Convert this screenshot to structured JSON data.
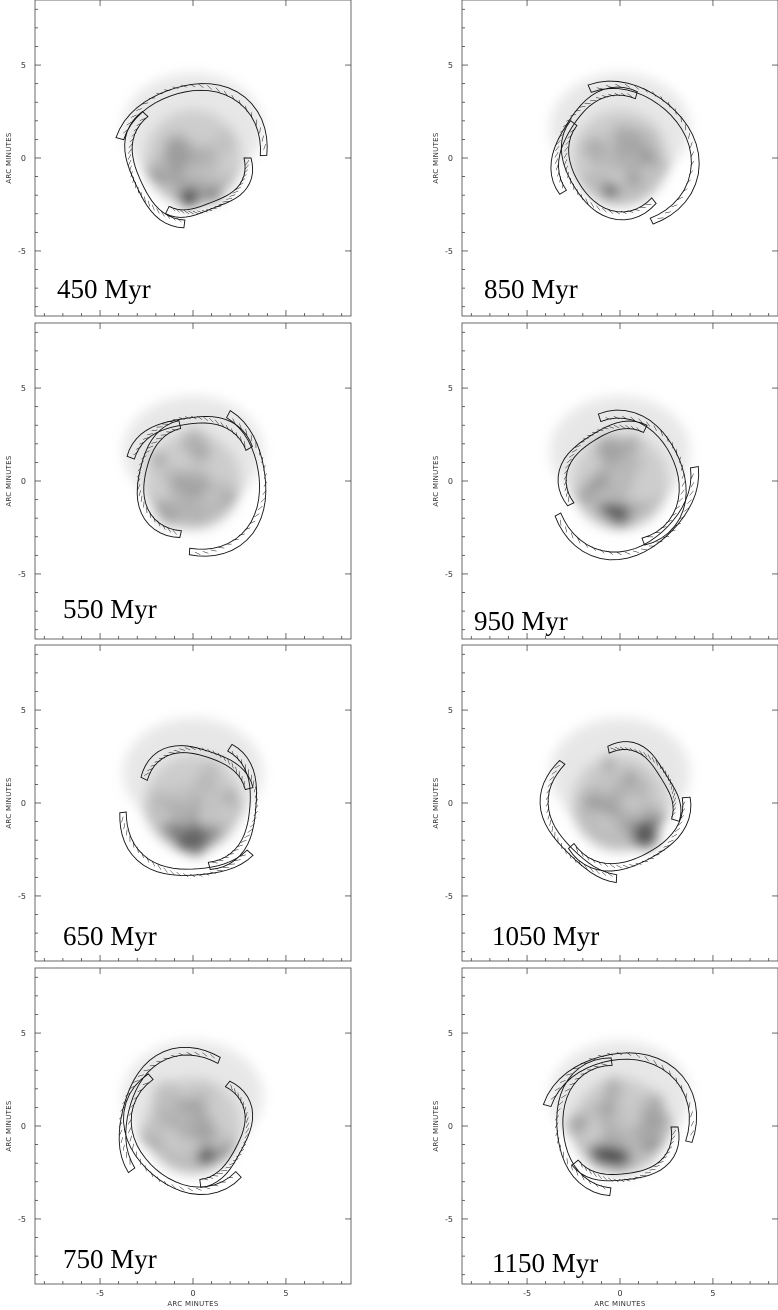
{
  "figure": {
    "panels": [
      {
        "label": "450 Myr"
      },
      {
        "label": "850 Myr"
      },
      {
        "label": "550 Myr"
      },
      {
        "label": "950 Myr"
      },
      {
        "label": "650 Myr"
      },
      {
        "label": "1050 Myr"
      },
      {
        "label": "750 Myr"
      },
      {
        "label": "1150 Myr"
      }
    ],
    "axis": {
      "xlabel": "ARC MINUTES",
      "ylabel": "ARC MINUTES",
      "x_ticks": [
        "-5",
        "0",
        "5"
      ],
      "y_ticks": [
        "5",
        "0",
        "-5"
      ],
      "range": [
        -8.5,
        8.5
      ]
    }
  }
}
